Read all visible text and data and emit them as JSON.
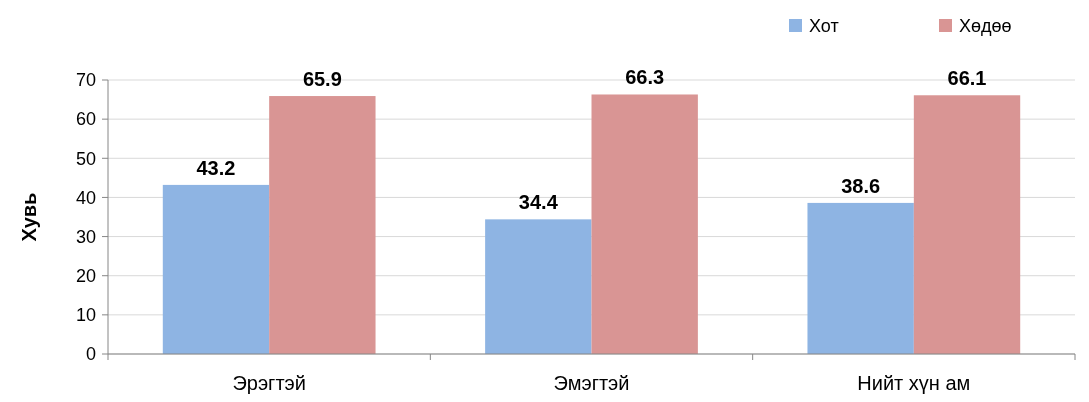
{
  "chart_data": {
    "type": "bar",
    "ylabel": "Хувь",
    "categories": [
      "Эрэгтэй",
      "Эмэгтэй",
      "Нийт хүн ам"
    ],
    "series": [
      {
        "name": "Хот",
        "color": "#8eb4e3",
        "values": [
          43.2,
          34.4,
          38.6
        ]
      },
      {
        "name": "Хөдөө",
        "color": "#d99594",
        "values": [
          65.9,
          66.3,
          66.1
        ]
      }
    ],
    "ylim": [
      0,
      70
    ],
    "yticks": [
      0,
      10,
      20,
      30,
      40,
      50,
      60,
      70
    ],
    "grid": "y",
    "legend": "top right",
    "data_labels": true
  }
}
